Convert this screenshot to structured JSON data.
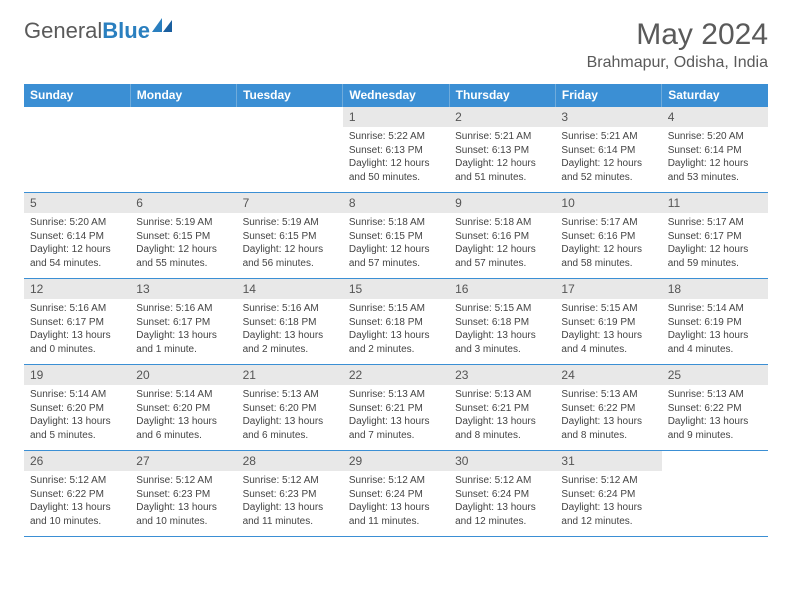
{
  "logo": {
    "text1": "General",
    "text2": "Blue"
  },
  "title": "May 2024",
  "location": "Brahmapur, Odisha, India",
  "colors": {
    "header_bg": "#3b8fd4",
    "header_text": "#ffffff",
    "daynum_bg": "#e8e8e8",
    "border": "#3b8fd4",
    "logo_gray": "#5a5a5a",
    "logo_blue": "#2a7fbf"
  },
  "day_names": [
    "Sunday",
    "Monday",
    "Tuesday",
    "Wednesday",
    "Thursday",
    "Friday",
    "Saturday"
  ],
  "weeks": [
    {
      "nums": [
        "",
        "",
        "",
        "1",
        "2",
        "3",
        "4"
      ],
      "cells": [
        null,
        null,
        null,
        {
          "sunrise": "Sunrise: 5:22 AM",
          "sunset": "Sunset: 6:13 PM",
          "day1": "Daylight: 12 hours",
          "day2": "and 50 minutes."
        },
        {
          "sunrise": "Sunrise: 5:21 AM",
          "sunset": "Sunset: 6:13 PM",
          "day1": "Daylight: 12 hours",
          "day2": "and 51 minutes."
        },
        {
          "sunrise": "Sunrise: 5:21 AM",
          "sunset": "Sunset: 6:14 PM",
          "day1": "Daylight: 12 hours",
          "day2": "and 52 minutes."
        },
        {
          "sunrise": "Sunrise: 5:20 AM",
          "sunset": "Sunset: 6:14 PM",
          "day1": "Daylight: 12 hours",
          "day2": "and 53 minutes."
        }
      ]
    },
    {
      "nums": [
        "5",
        "6",
        "7",
        "8",
        "9",
        "10",
        "11"
      ],
      "cells": [
        {
          "sunrise": "Sunrise: 5:20 AM",
          "sunset": "Sunset: 6:14 PM",
          "day1": "Daylight: 12 hours",
          "day2": "and 54 minutes."
        },
        {
          "sunrise": "Sunrise: 5:19 AM",
          "sunset": "Sunset: 6:15 PM",
          "day1": "Daylight: 12 hours",
          "day2": "and 55 minutes."
        },
        {
          "sunrise": "Sunrise: 5:19 AM",
          "sunset": "Sunset: 6:15 PM",
          "day1": "Daylight: 12 hours",
          "day2": "and 56 minutes."
        },
        {
          "sunrise": "Sunrise: 5:18 AM",
          "sunset": "Sunset: 6:15 PM",
          "day1": "Daylight: 12 hours",
          "day2": "and 57 minutes."
        },
        {
          "sunrise": "Sunrise: 5:18 AM",
          "sunset": "Sunset: 6:16 PM",
          "day1": "Daylight: 12 hours",
          "day2": "and 57 minutes."
        },
        {
          "sunrise": "Sunrise: 5:17 AM",
          "sunset": "Sunset: 6:16 PM",
          "day1": "Daylight: 12 hours",
          "day2": "and 58 minutes."
        },
        {
          "sunrise": "Sunrise: 5:17 AM",
          "sunset": "Sunset: 6:17 PM",
          "day1": "Daylight: 12 hours",
          "day2": "and 59 minutes."
        }
      ]
    },
    {
      "nums": [
        "12",
        "13",
        "14",
        "15",
        "16",
        "17",
        "18"
      ],
      "cells": [
        {
          "sunrise": "Sunrise: 5:16 AM",
          "sunset": "Sunset: 6:17 PM",
          "day1": "Daylight: 13 hours",
          "day2": "and 0 minutes."
        },
        {
          "sunrise": "Sunrise: 5:16 AM",
          "sunset": "Sunset: 6:17 PM",
          "day1": "Daylight: 13 hours",
          "day2": "and 1 minute."
        },
        {
          "sunrise": "Sunrise: 5:16 AM",
          "sunset": "Sunset: 6:18 PM",
          "day1": "Daylight: 13 hours",
          "day2": "and 2 minutes."
        },
        {
          "sunrise": "Sunrise: 5:15 AM",
          "sunset": "Sunset: 6:18 PM",
          "day1": "Daylight: 13 hours",
          "day2": "and 2 minutes."
        },
        {
          "sunrise": "Sunrise: 5:15 AM",
          "sunset": "Sunset: 6:18 PM",
          "day1": "Daylight: 13 hours",
          "day2": "and 3 minutes."
        },
        {
          "sunrise": "Sunrise: 5:15 AM",
          "sunset": "Sunset: 6:19 PM",
          "day1": "Daylight: 13 hours",
          "day2": "and 4 minutes."
        },
        {
          "sunrise": "Sunrise: 5:14 AM",
          "sunset": "Sunset: 6:19 PM",
          "day1": "Daylight: 13 hours",
          "day2": "and 4 minutes."
        }
      ]
    },
    {
      "nums": [
        "19",
        "20",
        "21",
        "22",
        "23",
        "24",
        "25"
      ],
      "cells": [
        {
          "sunrise": "Sunrise: 5:14 AM",
          "sunset": "Sunset: 6:20 PM",
          "day1": "Daylight: 13 hours",
          "day2": "and 5 minutes."
        },
        {
          "sunrise": "Sunrise: 5:14 AM",
          "sunset": "Sunset: 6:20 PM",
          "day1": "Daylight: 13 hours",
          "day2": "and 6 minutes."
        },
        {
          "sunrise": "Sunrise: 5:13 AM",
          "sunset": "Sunset: 6:20 PM",
          "day1": "Daylight: 13 hours",
          "day2": "and 6 minutes."
        },
        {
          "sunrise": "Sunrise: 5:13 AM",
          "sunset": "Sunset: 6:21 PM",
          "day1": "Daylight: 13 hours",
          "day2": "and 7 minutes."
        },
        {
          "sunrise": "Sunrise: 5:13 AM",
          "sunset": "Sunset: 6:21 PM",
          "day1": "Daylight: 13 hours",
          "day2": "and 8 minutes."
        },
        {
          "sunrise": "Sunrise: 5:13 AM",
          "sunset": "Sunset: 6:22 PM",
          "day1": "Daylight: 13 hours",
          "day2": "and 8 minutes."
        },
        {
          "sunrise": "Sunrise: 5:13 AM",
          "sunset": "Sunset: 6:22 PM",
          "day1": "Daylight: 13 hours",
          "day2": "and 9 minutes."
        }
      ]
    },
    {
      "nums": [
        "26",
        "27",
        "28",
        "29",
        "30",
        "31",
        ""
      ],
      "cells": [
        {
          "sunrise": "Sunrise: 5:12 AM",
          "sunset": "Sunset: 6:22 PM",
          "day1": "Daylight: 13 hours",
          "day2": "and 10 minutes."
        },
        {
          "sunrise": "Sunrise: 5:12 AM",
          "sunset": "Sunset: 6:23 PM",
          "day1": "Daylight: 13 hours",
          "day2": "and 10 minutes."
        },
        {
          "sunrise": "Sunrise: 5:12 AM",
          "sunset": "Sunset: 6:23 PM",
          "day1": "Daylight: 13 hours",
          "day2": "and 11 minutes."
        },
        {
          "sunrise": "Sunrise: 5:12 AM",
          "sunset": "Sunset: 6:24 PM",
          "day1": "Daylight: 13 hours",
          "day2": "and 11 minutes."
        },
        {
          "sunrise": "Sunrise: 5:12 AM",
          "sunset": "Sunset: 6:24 PM",
          "day1": "Daylight: 13 hours",
          "day2": "and 12 minutes."
        },
        {
          "sunrise": "Sunrise: 5:12 AM",
          "sunset": "Sunset: 6:24 PM",
          "day1": "Daylight: 13 hours",
          "day2": "and 12 minutes."
        },
        null
      ]
    }
  ]
}
